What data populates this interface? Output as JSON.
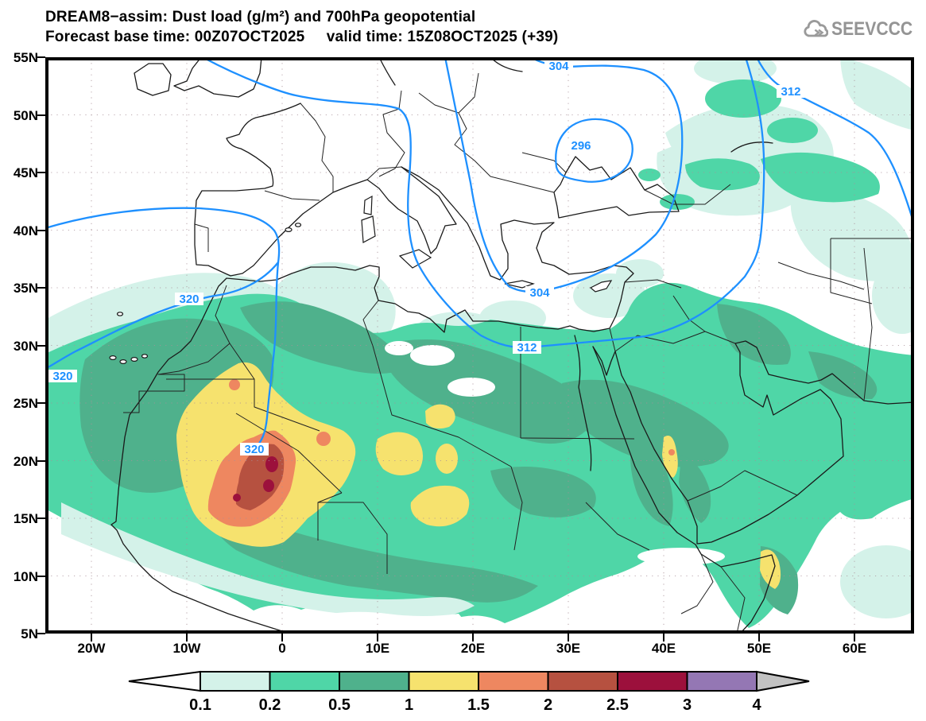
{
  "header": {
    "title_line1": "DREAM8−assim: Dust load (g/m²) and 700hPa geopotential",
    "title_line2": "Forecast base time: 00Z07OCT2025     valid time: 15Z08OCT2025 (+39)"
  },
  "logo": {
    "text": "SEEVCCC"
  },
  "axes": {
    "lat_labels": [
      "55N",
      "50N",
      "45N",
      "40N",
      "35N",
      "30N",
      "25N",
      "20N",
      "15N",
      "10N",
      "5N"
    ],
    "lon_labels": [
      "20W",
      "10W",
      "0",
      "10E",
      "20E",
      "30E",
      "40E",
      "50E",
      "60E"
    ]
  },
  "contours": {
    "labels": [
      "304",
      "296",
      "312",
      "304",
      "312",
      "320",
      "320",
      "320"
    ]
  },
  "colorbar": {
    "labels": [
      "0.1",
      "0.2",
      "0.5",
      "1",
      "1.5",
      "2",
      "2.5",
      "3",
      "4"
    ],
    "colors": [
      "#d4f2e9",
      "#4fd6a7",
      "#4fb18c",
      "#f6e26e",
      "#ee8760",
      "#b65140",
      "#9c103c",
      "#9477b4"
    ],
    "arrow_left_color": "#ffffff",
    "arrow_right_color": "#c2c2c2"
  },
  "chart_data": {
    "type": "heatmap",
    "subtype": "filled-contour map with line contours",
    "title": "DREAM8−assim: Dust load (g/m²) and 700hPa geopotential",
    "forecast_base_time": "00Z07OCT2025",
    "valid_time": "15Z08OCT2025 (+39)",
    "lead_hours": 39,
    "map_extent": {
      "lon_min": -25,
      "lon_max": 66,
      "lat_min": 5,
      "lat_max": 55
    },
    "x_tick_labels": [
      "20W",
      "10W",
      "0",
      "10E",
      "20E",
      "30E",
      "40E",
      "50E",
      "60E"
    ],
    "y_tick_labels": [
      "5N",
      "10N",
      "15N",
      "20N",
      "25N",
      "30N",
      "35N",
      "40N",
      "45N",
      "50N",
      "55N"
    ],
    "shading_variable": "dust load",
    "shading_units": "g/m²",
    "shading_levels": [
      0.1,
      0.2,
      0.5,
      1,
      1.5,
      2,
      2.5,
      3,
      4
    ],
    "shading_colors": [
      "#d4f2e9",
      "#4fd6a7",
      "#4fb18c",
      "#f6e26e",
      "#ee8760",
      "#b65140",
      "#9c103c",
      "#9477b4"
    ],
    "line_variable": "700hPa geopotential",
    "line_contour_values_labeled": [
      296,
      304,
      312,
      320
    ],
    "line_contour_color": "#1e90ff",
    "grid": "dotted, every 10 deg lon / 5 deg lat",
    "legend_position": "bottom horizontal colorbar with under/over arrows",
    "dust_maxima": [
      {
        "lon": -1,
        "lat": 18,
        "max_band": "2.5–3 g/m²",
        "region": "central Sahel (Mali/Niger)"
      },
      {
        "lon": 40,
        "lat": 16,
        "max_band": "1.5–2 g/m²",
        "region": "western Red Sea coast"
      },
      {
        "lon": 49.5,
        "lat": 9,
        "max_band": "1–1.5 g/m²",
        "region": "Horn of Africa"
      }
    ],
    "dust_field_summary": "0.2–1 g/m² blanket over Sahara, Sahel and Arabian Peninsula; 1–3 g/m² core near 0E,18N; light 0.1–0.5 patches over Anatolia, Caucasus and Caspian region",
    "geopotential_summary": "closed low (296/304) over Black Sea–Aegean; 312 contour from English Channel across central Mediterranean to Caspian; 320 ridge over NW Africa and Atlantic"
  }
}
